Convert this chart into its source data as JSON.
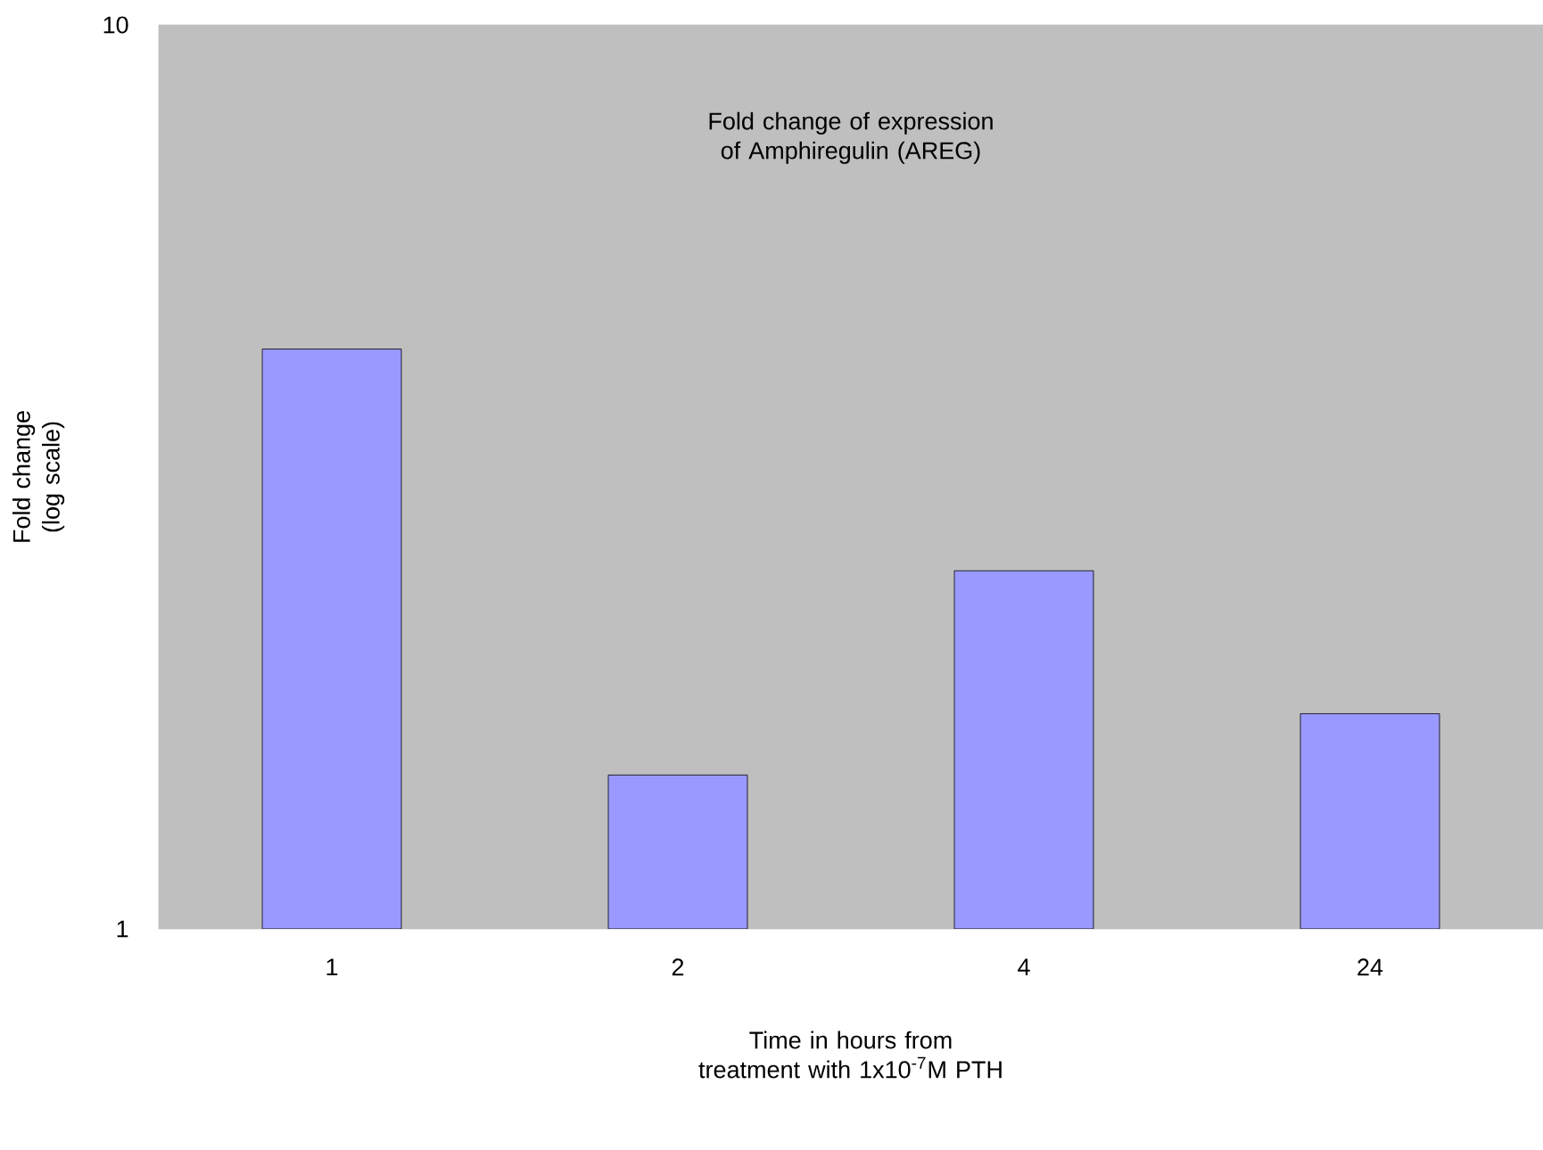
{
  "chart_data": {
    "type": "bar",
    "title": "Fold change of expression of Amphiregulin (AREG)",
    "xlabel": "Time in hours from treatment with 1x10$^{-7}$M PTH",
    "ylabel": "Fold change (log scale)",
    "categories": [
      "1",
      "2",
      "4",
      "24"
    ],
    "values": [
      4.38,
      1.48,
      2.49,
      1.73
    ],
    "color": "#9999ff",
    "log": true,
    "ylim": [
      1,
      10
    ],
    "yticks": [
      1,
      10
    ],
    "grid": false
  }
}
